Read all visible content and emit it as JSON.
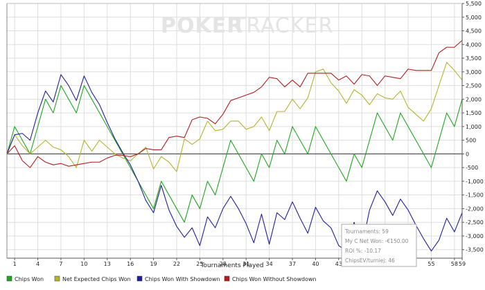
{
  "watermark": {
    "brand_bold": "POKER",
    "brand_light": "TRACKER"
  },
  "chart_data": {
    "type": "line",
    "xlabel": "Tournaments Played",
    "ylabel": "",
    "xlim": [
      0,
      59
    ],
    "ylim": [
      -5000,
      5500
    ],
    "x_ticks": [
      1,
      4,
      7,
      10,
      13,
      16,
      19,
      22,
      25,
      28,
      31,
      34,
      37,
      40,
      43,
      46,
      49,
      52,
      55,
      58,
      59
    ],
    "y_ticks": [
      -5000,
      -4500,
      -4000,
      -3500,
      -3000,
      -2500,
      -2000,
      -1500,
      -1000,
      -500,
      0,
      500,
      1000,
      1500,
      2000,
      2500,
      3000,
      3500,
      4000,
      4500,
      5000,
      5500
    ],
    "y_tick_labels": [
      "-5,000",
      "-4,500",
      "-4,000",
      "-3,500",
      "-3,000",
      "-2,500",
      "-2,000",
      "-1,500",
      "-1,000",
      "-500",
      "0",
      "500",
      "1,000",
      "1,500",
      "2,000",
      "2,500",
      "3,000",
      "3,500",
      "4,000",
      "4,500",
      "5,000",
      "5,500"
    ],
    "grid": true,
    "legend_position": "bottom",
    "series": [
      {
        "name": "Chips Won",
        "color": "#1fa51f",
        "points": [
          [
            0,
            0
          ],
          [
            1,
            1000
          ],
          [
            2,
            500
          ],
          [
            3,
            0
          ],
          [
            4,
            1000
          ],
          [
            5,
            2000
          ],
          [
            6,
            1500
          ],
          [
            7,
            2500
          ],
          [
            8,
            2000
          ],
          [
            9,
            1500
          ],
          [
            10,
            2500
          ],
          [
            11,
            2000
          ],
          [
            12,
            1500
          ],
          [
            13,
            1000
          ],
          [
            14,
            500
          ],
          [
            15,
            0
          ],
          [
            16,
            -500
          ],
          [
            17,
            -1000
          ],
          [
            18,
            -1500
          ],
          [
            19,
            -2000
          ],
          [
            20,
            -1000
          ],
          [
            21,
            -1500
          ],
          [
            22,
            -2000
          ],
          [
            23,
            -2500
          ],
          [
            24,
            -1500
          ],
          [
            25,
            -2000
          ],
          [
            26,
            -1000
          ],
          [
            27,
            -1500
          ],
          [
            28,
            -500
          ],
          [
            29,
            500
          ],
          [
            30,
            0
          ],
          [
            31,
            -500
          ],
          [
            32,
            -1000
          ],
          [
            33,
            0
          ],
          [
            34,
            -500
          ],
          [
            35,
            500
          ],
          [
            36,
            0
          ],
          [
            37,
            1000
          ],
          [
            38,
            500
          ],
          [
            39,
            0
          ],
          [
            40,
            1000
          ],
          [
            41,
            500
          ],
          [
            42,
            0
          ],
          [
            43,
            -500
          ],
          [
            44,
            -1000
          ],
          [
            45,
            0
          ],
          [
            46,
            -500
          ],
          [
            47,
            500
          ],
          [
            48,
            1500
          ],
          [
            49,
            1000
          ],
          [
            50,
            500
          ],
          [
            51,
            1500
          ],
          [
            52,
            1000
          ],
          [
            53,
            500
          ],
          [
            54,
            0
          ],
          [
            55,
            -500
          ],
          [
            56,
            500
          ],
          [
            57,
            1500
          ],
          [
            58,
            1000
          ],
          [
            59,
            2000
          ]
        ]
      },
      {
        "name": "Net Expected Chips Won",
        "color": "#b3b32e",
        "points": [
          [
            0,
            0
          ],
          [
            1,
            700
          ],
          [
            2,
            300
          ],
          [
            3,
            0
          ],
          [
            4,
            250
          ],
          [
            5,
            500
          ],
          [
            6,
            250
          ],
          [
            7,
            150
          ],
          [
            8,
            -100
          ],
          [
            9,
            -500
          ],
          [
            10,
            500
          ],
          [
            11,
            100
          ],
          [
            12,
            500
          ],
          [
            13,
            250
          ],
          [
            14,
            0
          ],
          [
            15,
            -150
          ],
          [
            16,
            -250
          ],
          [
            17,
            0
          ],
          [
            18,
            250
          ],
          [
            19,
            -550
          ],
          [
            20,
            -100
          ],
          [
            21,
            -300
          ],
          [
            22,
            -650
          ],
          [
            23,
            550
          ],
          [
            24,
            350
          ],
          [
            25,
            550
          ],
          [
            26,
            1200
          ],
          [
            27,
            850
          ],
          [
            28,
            900
          ],
          [
            29,
            1200
          ],
          [
            30,
            1200
          ],
          [
            31,
            900
          ],
          [
            32,
            1000
          ],
          [
            33,
            1350
          ],
          [
            34,
            850
          ],
          [
            35,
            1550
          ],
          [
            36,
            1550
          ],
          [
            37,
            2000
          ],
          [
            38,
            1650
          ],
          [
            39,
            2050
          ],
          [
            40,
            3000
          ],
          [
            41,
            3100
          ],
          [
            42,
            2600
          ],
          [
            43,
            2300
          ],
          [
            44,
            1850
          ],
          [
            45,
            2350
          ],
          [
            46,
            2150
          ],
          [
            47,
            1800
          ],
          [
            48,
            2200
          ],
          [
            49,
            2050
          ],
          [
            50,
            2000
          ],
          [
            51,
            2300
          ],
          [
            52,
            1700
          ],
          [
            53,
            1450
          ],
          [
            54,
            1200
          ],
          [
            55,
            1650
          ],
          [
            56,
            2500
          ],
          [
            57,
            3350
          ],
          [
            58,
            3050
          ],
          [
            59,
            2700
          ]
        ]
      },
      {
        "name": "Chips Won With Showdown",
        "color": "#1f1f99",
        "points": [
          [
            0,
            0
          ],
          [
            1,
            700
          ],
          [
            2,
            750
          ],
          [
            3,
            500
          ],
          [
            4,
            1500
          ],
          [
            5,
            2300
          ],
          [
            6,
            1900
          ],
          [
            7,
            2900
          ],
          [
            8,
            2500
          ],
          [
            9,
            1950
          ],
          [
            10,
            2850
          ],
          [
            11,
            2250
          ],
          [
            12,
            1800
          ],
          [
            13,
            1150
          ],
          [
            14,
            550
          ],
          [
            15,
            50
          ],
          [
            16,
            -400
          ],
          [
            17,
            -1000
          ],
          [
            18,
            -1700
          ],
          [
            19,
            -2150
          ],
          [
            20,
            -1150
          ],
          [
            21,
            -2050
          ],
          [
            22,
            -2650
          ],
          [
            23,
            -3050
          ],
          [
            24,
            -2700
          ],
          [
            25,
            -3350
          ],
          [
            26,
            -2300
          ],
          [
            27,
            -2700
          ],
          [
            28,
            -2000
          ],
          [
            29,
            -1550
          ],
          [
            30,
            -2000
          ],
          [
            31,
            -2550
          ],
          [
            32,
            -3250
          ],
          [
            33,
            -2200
          ],
          [
            34,
            -3300
          ],
          [
            35,
            -2150
          ],
          [
            36,
            -2400
          ],
          [
            37,
            -1750
          ],
          [
            38,
            -2350
          ],
          [
            39,
            -2900
          ],
          [
            40,
            -1950
          ],
          [
            41,
            -2450
          ],
          [
            42,
            -2700
          ],
          [
            43,
            -3350
          ],
          [
            44,
            -3550
          ],
          [
            45,
            -2500
          ],
          [
            46,
            -3400
          ],
          [
            47,
            -2050
          ],
          [
            48,
            -1350
          ],
          [
            49,
            -1750
          ],
          [
            50,
            -2250
          ],
          [
            51,
            -1650
          ],
          [
            52,
            -2050
          ],
          [
            53,
            -2600
          ],
          [
            54,
            -3100
          ],
          [
            55,
            -3550
          ],
          [
            56,
            -3150
          ],
          [
            57,
            -2350
          ],
          [
            58,
            -2850
          ],
          [
            59,
            -2150
          ]
        ]
      },
      {
        "name": "Chips Won Without Showdown",
        "color": "#b01f1f",
        "points": [
          [
            0,
            0
          ],
          [
            1,
            300
          ],
          [
            2,
            -250
          ],
          [
            3,
            -500
          ],
          [
            4,
            -100
          ],
          [
            5,
            -300
          ],
          [
            6,
            -400
          ],
          [
            7,
            -350
          ],
          [
            8,
            -450
          ],
          [
            9,
            -400
          ],
          [
            10,
            -350
          ],
          [
            11,
            -300
          ],
          [
            12,
            -300
          ],
          [
            13,
            -150
          ],
          [
            14,
            -50
          ],
          [
            15,
            -50
          ],
          [
            16,
            -100
          ],
          [
            17,
            0
          ],
          [
            18,
            200
          ],
          [
            19,
            150
          ],
          [
            20,
            150
          ],
          [
            21,
            600
          ],
          [
            22,
            650
          ],
          [
            23,
            600
          ],
          [
            24,
            1250
          ],
          [
            25,
            1350
          ],
          [
            26,
            1300
          ],
          [
            27,
            1100
          ],
          [
            28,
            1450
          ],
          [
            29,
            1950
          ],
          [
            30,
            2050
          ],
          [
            31,
            2150
          ],
          [
            32,
            2250
          ],
          [
            33,
            2450
          ],
          [
            34,
            2800
          ],
          [
            35,
            2750
          ],
          [
            36,
            2450
          ],
          [
            37,
            2700
          ],
          [
            38,
            2450
          ],
          [
            39,
            2950
          ],
          [
            40,
            2950
          ],
          [
            41,
            2950
          ],
          [
            42,
            2950
          ],
          [
            43,
            2700
          ],
          [
            44,
            2850
          ],
          [
            45,
            2550
          ],
          [
            46,
            2900
          ],
          [
            47,
            2850
          ],
          [
            48,
            2500
          ],
          [
            49,
            2850
          ],
          [
            50,
            2800
          ],
          [
            51,
            2750
          ],
          [
            52,
            3100
          ],
          [
            53,
            3050
          ],
          [
            54,
            3050
          ],
          [
            55,
            3050
          ],
          [
            56,
            3700
          ],
          [
            57,
            3900
          ],
          [
            58,
            3900
          ],
          [
            59,
            4150
          ]
        ]
      }
    ],
    "tooltip": {
      "line1": "Tournaments: 59",
      "line2": "My C Net Won: -€150.00",
      "line3": "ROI %: -10.17",
      "line4": "ChipsEV/turniej: 46"
    }
  }
}
